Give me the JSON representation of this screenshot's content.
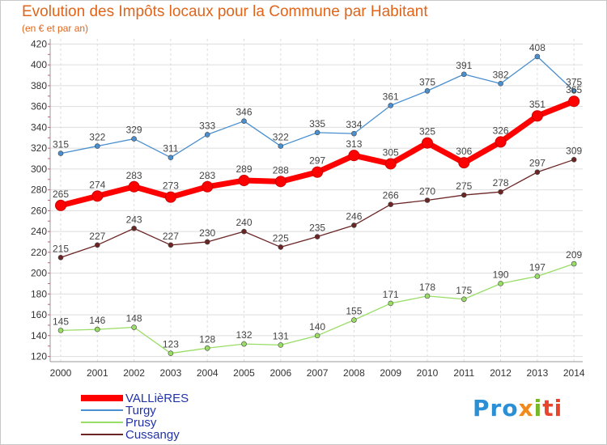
{
  "title": "Evolution des Impôts locaux pour la Commune par Habitant",
  "subtitle": "(en € et par an)",
  "chart_data": {
    "type": "line",
    "title": "Evolution des Impôts locaux pour la Commune par Habitant",
    "subtitle": "(en € et par an)",
    "categories": [
      "2000",
      "2001",
      "2002",
      "2003",
      "2004",
      "2005",
      "2006",
      "2007",
      "2008",
      "2009",
      "2010",
      "2011",
      "2012",
      "2013",
      "2014"
    ],
    "ylim": [
      115,
      425
    ],
    "yticks": [
      120,
      140,
      160,
      180,
      200,
      220,
      240,
      260,
      280,
      300,
      320,
      340,
      360,
      380,
      400,
      420
    ],
    "grid": true,
    "legend_position": "bottom-left",
    "series": [
      {
        "name": "VALLièRES",
        "color": "#ff0000",
        "values": [
          265,
          274,
          283,
          273,
          283,
          289,
          288,
          297,
          313,
          305,
          325,
          306,
          326,
          351,
          365
        ]
      },
      {
        "name": "Turgy",
        "color": "#4a8fcf",
        "values": [
          315,
          322,
          329,
          311,
          333,
          346,
          322,
          335,
          334,
          361,
          375,
          391,
          382,
          408,
          375
        ]
      },
      {
        "name": "Prusy",
        "color": "#99dd66",
        "values": [
          145,
          146,
          148,
          123,
          128,
          132,
          131,
          140,
          155,
          171,
          178,
          175,
          190,
          197,
          209
        ]
      },
      {
        "name": "Cussangy",
        "color": "#6b2525",
        "values": [
          215,
          227,
          243,
          227,
          230,
          240,
          225,
          235,
          246,
          266,
          270,
          275,
          278,
          297,
          309
        ]
      }
    ]
  },
  "logo_text": {
    "p1": "Pro",
    "p2": "x",
    "p3": "i",
    "p4": "ti"
  }
}
